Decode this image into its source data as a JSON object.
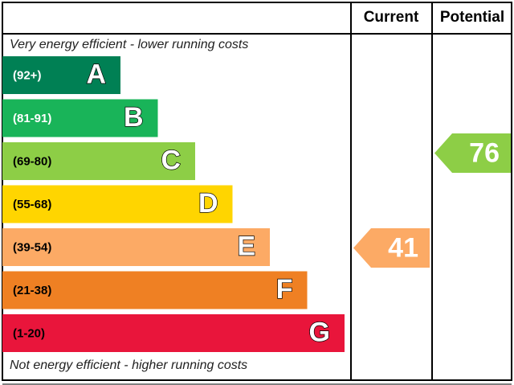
{
  "chart_data": {
    "type": "epc",
    "current_label": "Current",
    "potential_label": "Potential",
    "top_note": "Very energy efficient - lower running costs",
    "bottom_note": "Not energy efficient - higher running costs",
    "bands": [
      {
        "range": "(92+)",
        "letter": "A",
        "color": "#008054"
      },
      {
        "range": "(81-91)",
        "letter": "B",
        "color": "#19b459"
      },
      {
        "range": "(69-80)",
        "letter": "C",
        "color": "#8dce46"
      },
      {
        "range": "(55-68)",
        "letter": "D",
        "color": "#ffd500"
      },
      {
        "range": "(39-54)",
        "letter": "E",
        "color": "#fcaa65"
      },
      {
        "range": "(21-38)",
        "letter": "F",
        "color": "#ef8023"
      },
      {
        "range": "(1-20)",
        "letter": "G",
        "color": "#e9153b"
      }
    ],
    "current": 41,
    "potential": 76
  }
}
